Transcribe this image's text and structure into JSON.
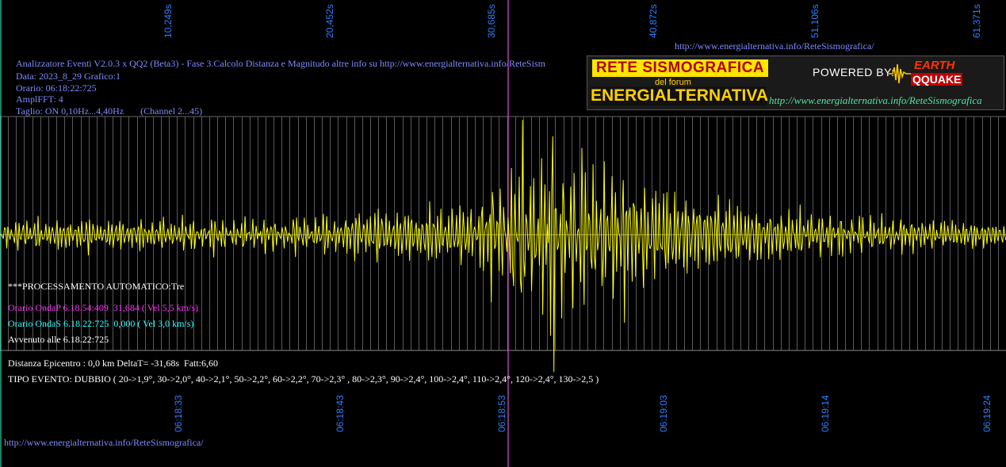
{
  "header": {
    "line1": "Analizzatore Eventi V2.0.3 x QQ2 (Beta3) - Fase 3.Calcolo Distanza e Magnitudo altre info su http://www.energialternativa.info/ReteSism",
    "line2": "Data: 2023_8_29 Grafico:1",
    "line3": "Orario: 06:18:22:725",
    "line4": "AmplFFT: 4",
    "line5": "Taglio: ON 0,10Hz...4,40Hz       (Channel 2...45)"
  },
  "top_url": "http://www.energialternativa.info/ReteSismografica/",
  "bottom_url": "http://www.energialternativa.info/ReteSismografica/",
  "banner": {
    "rete": "RETE SISMOGRAFICA",
    "forum": "del forum",
    "energ": "ENERGIALTERNATIVA",
    "powered": "POWERED BY:",
    "earth": "EARTH",
    "qquake": "QQUAKE",
    "url": "http://www.energialternativa.info/ReteSismografica"
  },
  "processing": {
    "title": "***PROCESSAMENTO AUTOMATICO:Tre",
    "onda_p": "Orario OndaP 6.18.54:409  31,684 ( Vel 5,5 km/s)",
    "onda_s": "Orario OndaS 6.18.22:725  0,000 ( Vel 3,0 km/s)",
    "avvenuto": "Avvenuto alle 6.18.22:725",
    "distanza": "Distanza Epicentro : 0,0 km DeltaT= -31,68s  Fatt:6,60",
    "tipo": "TIPO EVENTO: DUBBIO ( 20->1,9°, 30->2,0°, 40->2,1°, 50->2,2°, 60->2,2°, 70->2,3° , 80->2,3°, 90->2,4°, 100->2,4°, 110->2,4°, 120->2,4°, 130->2,5 )"
  },
  "colors": {
    "trace": "#ffff00",
    "grid": "#5a5a5a",
    "tick": "#2f7fff",
    "marker_p": "#ff66ff",
    "marker_s": "#33ffcc"
  },
  "chart_data": {
    "type": "line",
    "top_ticks": [
      "10,249s",
      "20,452s",
      "30,685s",
      "40,872s",
      "51,106s",
      "61,371s"
    ],
    "bottom_ticks": [
      "06:18:33",
      "06:18:43",
      "06:18:53",
      "06:19:03",
      "06:19:14",
      "06:19:24"
    ],
    "series": [
      {
        "values": [
          0,
          0.15,
          -0.1,
          0.2,
          -0.25,
          0.18,
          -0.12,
          0.3,
          -0.2,
          0.1,
          0.22,
          -0.3,
          0.25,
          -0.15,
          0.12,
          -0.2,
          0.35,
          -0.25,
          0.15,
          -0.1,
          0.2,
          -0.3,
          0.28,
          -0.18,
          0.12,
          -0.22,
          0.3,
          -0.15,
          0.1,
          -0.25,
          0.32,
          -0.2,
          0.18,
          -0.12,
          0.25,
          -0.28,
          0.2,
          -0.15,
          0.1,
          -0.3,
          0.35,
          -0.22,
          0.16,
          -0.1,
          0.24,
          -0.3,
          0.26,
          -0.18,
          0.12,
          -0.2,
          0.3,
          -0.25,
          0.18,
          -0.14,
          0.22,
          -0.35,
          0.3,
          -0.2,
          0.15,
          -0.28,
          0.4,
          -0.3,
          0.22,
          -0.15,
          0.3,
          -0.45,
          0.5,
          -0.35,
          0.25,
          -0.4,
          0.55,
          -0.5,
          0.35,
          -0.25,
          0.45,
          -0.6,
          0.5,
          -0.4,
          0.3,
          -0.45,
          0.6,
          -0.55,
          0.4,
          -0.3,
          0.5,
          -0.65,
          0.7,
          -0.45,
          0.35,
          -0.55,
          0.8,
          -1.2,
          1.4,
          -0.9,
          0.7,
          -1.1,
          1.9,
          -2.2,
          1.6,
          -1.3,
          1.1,
          -1.5,
          2.6,
          -2.4,
          1.8,
          -1.4,
          1.2,
          -1.6,
          1.8,
          -1.5,
          1.3,
          -1.1,
          1.5,
          -1.3,
          1.2,
          -1.0,
          1.4,
          -1.2,
          1.1,
          -0.9,
          1.2,
          -1.0,
          0.9,
          -0.8,
          1.0,
          -0.9,
          0.8,
          -0.7,
          0.9,
          -0.8,
          0.7,
          -0.6,
          0.8,
          -0.7,
          0.6,
          -0.5,
          0.7,
          -0.6,
          0.5,
          -0.45,
          0.6,
          -0.5,
          0.45,
          -0.4,
          0.5,
          -0.45,
          0.4,
          -0.35,
          0.5,
          -0.4,
          0.35,
          -0.3,
          0.4,
          -0.35,
          0.3,
          -0.28,
          0.35,
          -0.3,
          0.28,
          -0.25,
          0.32,
          -0.28,
          0.25,
          -0.22,
          0.3,
          -0.25,
          0.22,
          -0.2,
          0.28,
          -0.25,
          0.2,
          -0.18,
          0.25,
          -0.22,
          0.2,
          -0.18,
          0.22,
          -0.2,
          0.18,
          -0.15,
          0.2,
          -0.18,
          0.15,
          -0.12,
          0.18,
          -0.15,
          0.12,
          -0.1
        ]
      }
    ],
    "xlim": [
      0,
      63
    ],
    "p_marker_time": "31,684"
  }
}
